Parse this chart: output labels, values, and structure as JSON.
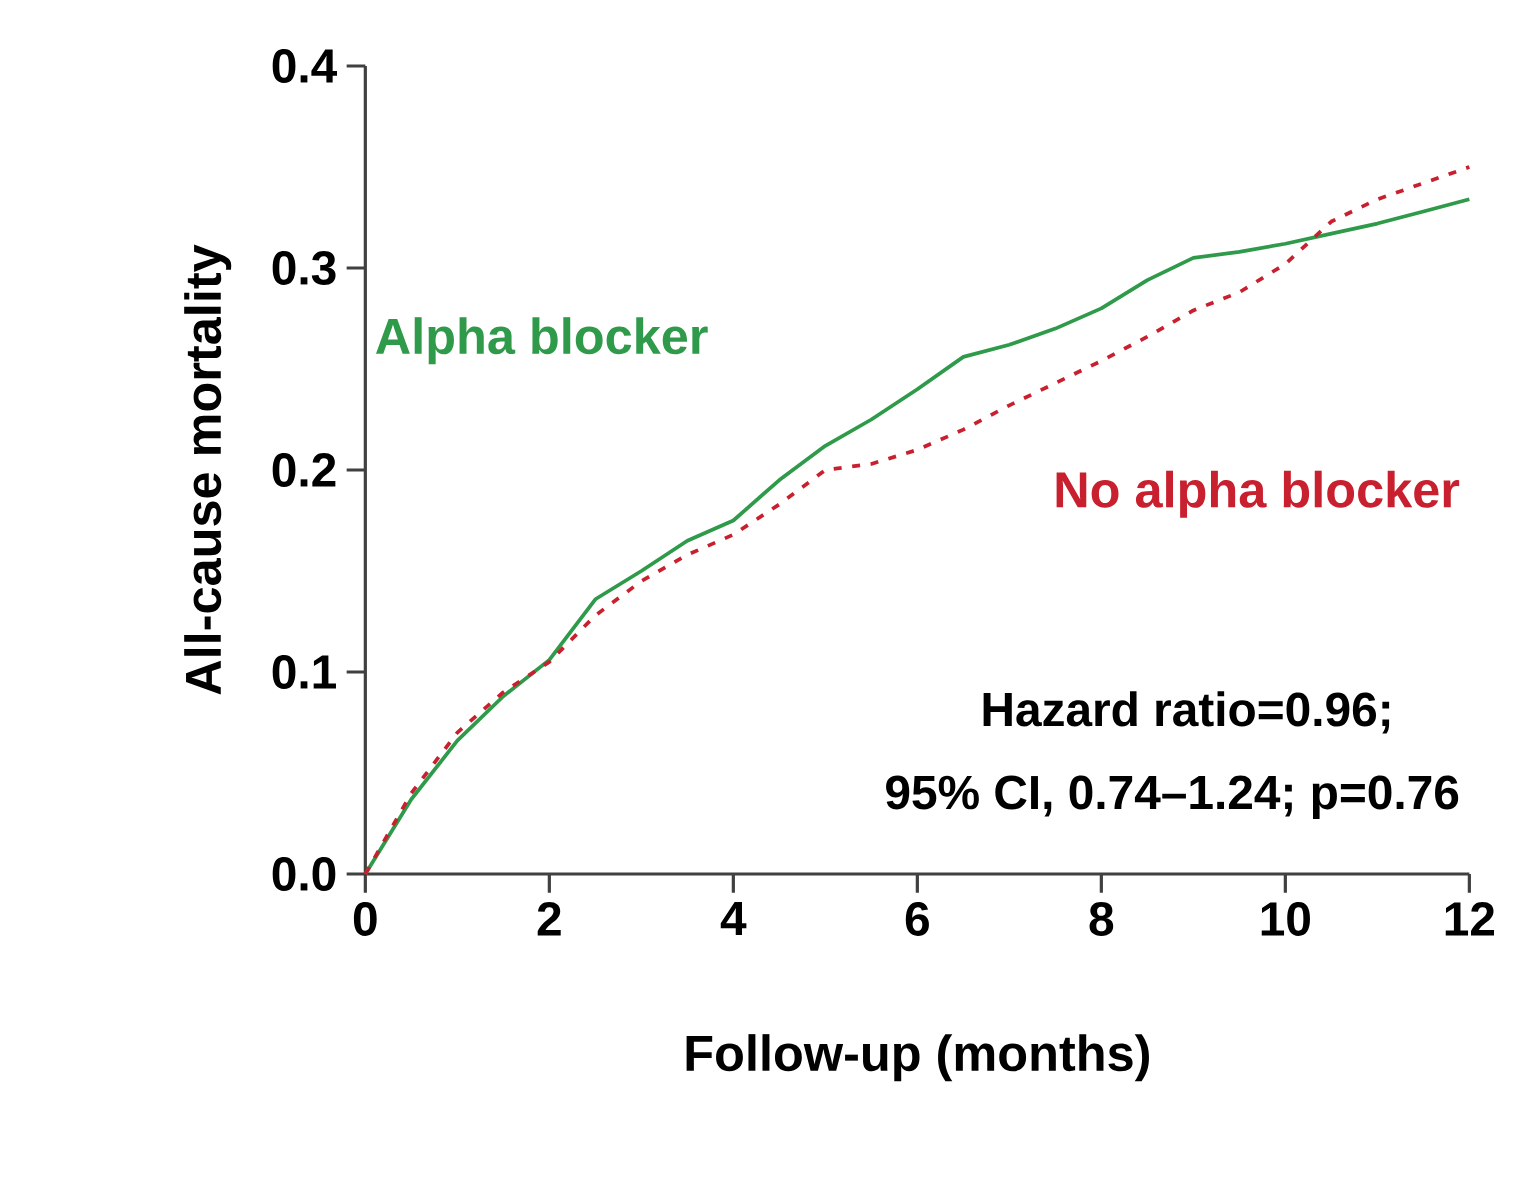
{
  "chart_data": {
    "type": "line",
    "xlabel": "Follow-up (months)",
    "ylabel": "All-cause mortality",
    "x": [
      0,
      0.5,
      1,
      1.5,
      2,
      2.5,
      3,
      3.5,
      4,
      4.5,
      5,
      5.5,
      6,
      6.5,
      7,
      7.5,
      8,
      8.5,
      9,
      9.5,
      10,
      10.5,
      11,
      11.5,
      12
    ],
    "series": [
      {
        "name": "Alpha blocker",
        "color": "#2e9a4a",
        "line_style": "solid",
        "values": [
          0,
          0.037,
          0.066,
          0.088,
          0.106,
          0.136,
          0.15,
          0.165,
          0.175,
          0.195,
          0.212,
          0.225,
          0.24,
          0.256,
          0.262,
          0.27,
          0.28,
          0.294,
          0.305,
          0.308,
          0.312,
          0.317,
          0.322,
          0.328,
          0.334
        ]
      },
      {
        "name": "No alpha blocker",
        "color": "#c8202e",
        "line_style": "dotted",
        "values": [
          0,
          0.04,
          0.07,
          0.09,
          0.105,
          0.128,
          0.145,
          0.158,
          0.168,
          0.183,
          0.2,
          0.203,
          0.21,
          0.22,
          0.232,
          0.243,
          0.254,
          0.266,
          0.279,
          0.288,
          0.302,
          0.323,
          0.334,
          0.342,
          0.35
        ]
      }
    ],
    "xlim": [
      0,
      12
    ],
    "ylim": [
      0,
      0.4
    ],
    "xticks": [
      0,
      2,
      4,
      6,
      8,
      10,
      12
    ],
    "yticks": [
      {
        "value": 0,
        "label": "0.0"
      },
      {
        "value": 0.1,
        "label": "0.1"
      },
      {
        "value": 0.2,
        "label": "0.2"
      },
      {
        "value": 0.3,
        "label": "0.3"
      },
      {
        "value": 0.4,
        "label": "0.4"
      }
    ],
    "annotations": [
      "Hazard ratio=0.96;",
      "95% CI, 0.74–1.24; p=0.76"
    ],
    "legend": false,
    "grid": false
  }
}
